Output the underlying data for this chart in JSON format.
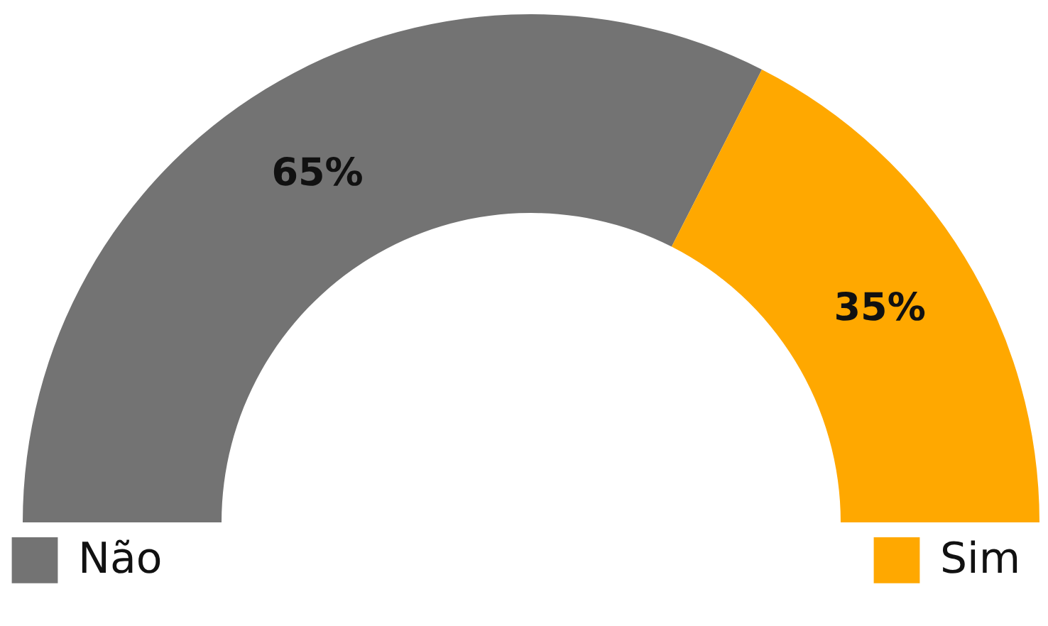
{
  "chart_data": {
    "type": "donut",
    "categories": [
      "Não",
      "Sim"
    ],
    "values": [
      65,
      35
    ],
    "colors": [
      "#737373",
      "#ffa800"
    ],
    "value_labels": [
      "65%",
      "35%"
    ],
    "legend": "bottom"
  }
}
